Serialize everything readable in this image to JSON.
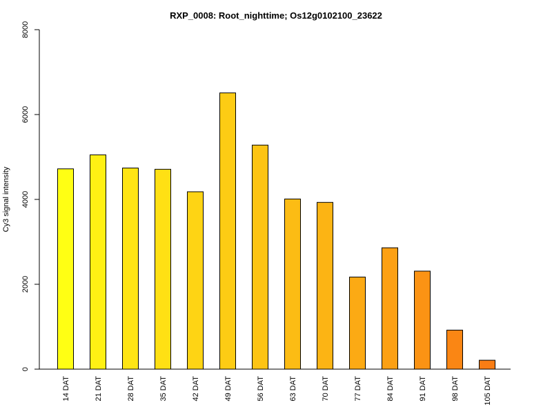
{
  "chart_data": {
    "type": "bar",
    "title": "RXP_0008: Root_nighttime; Os12g0102100_23622",
    "xlabel": "",
    "ylabel": "Cy3 signal intensity",
    "ylim": [
      0,
      8000
    ],
    "yticks": [
      0,
      2000,
      4000,
      6000,
      8000
    ],
    "categories": [
      "14 DAT",
      "21 DAT",
      "28 DAT",
      "35 DAT",
      "42 DAT",
      "49 DAT",
      "56 DAT",
      "63 DAT",
      "70 DAT",
      "77 DAT",
      "84 DAT",
      "91 DAT",
      "98 DAT",
      "105 DAT"
    ],
    "values": [
      4720,
      5050,
      4740,
      4710,
      4180,
      6510,
      5280,
      4010,
      3930,
      2170,
      2860,
      2310,
      920,
      210
    ],
    "colors": [
      "#ffff14",
      "#fff014",
      "#ffe514",
      "#ffe014",
      "#fed414",
      "#fdcc14",
      "#fdc414",
      "#fcbc14",
      "#fcb414",
      "#fcaa14",
      "#fca014",
      "#fb9314",
      "#fa8614",
      "#f97d14"
    ],
    "grid": false,
    "legend": "none"
  }
}
